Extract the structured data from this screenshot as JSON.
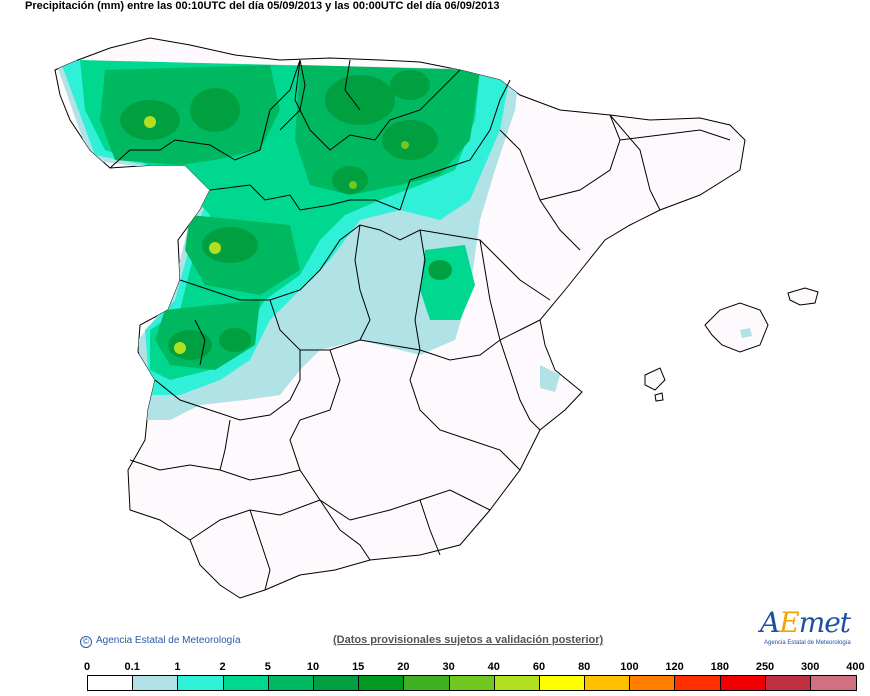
{
  "title": "Precipitación (mm) entre las 00:10UTC del día 05/09/2013 y las 00:00UTC del día 06/09/2013",
  "copyright": "Agencia Estatal de Meteorología",
  "disclaimer": "(Datos provisionales sujetos a validación posterior)",
  "logo": {
    "word_a": "A",
    "word_e": "E",
    "word_rest": "met",
    "sub": "Agencia Estatal de Meteorología"
  },
  "legend": {
    "labels": [
      "0",
      "0.1",
      "1",
      "2",
      "5",
      "10",
      "15",
      "20",
      "30",
      "40",
      "60",
      "80",
      "100",
      "120",
      "180",
      "250",
      "300",
      "400"
    ],
    "colors": [
      "#ffffff",
      "#b0e2e6",
      "#30f0d8",
      "#00d890",
      "#00b860",
      "#00a040",
      "#009a20",
      "#40b020",
      "#70c820",
      "#b0e020",
      "#ffff00",
      "#ffc000",
      "#ff8000",
      "#ff3000",
      "#f00000",
      "#c03040",
      "#d07080",
      "#f0c0c8"
    ]
  },
  "map_colors": {
    "land": "#fdf9fd",
    "sea": "#ffffff",
    "border": "#000000",
    "light": "#b0e2e6",
    "cyan": "#30f0d8",
    "green1": "#00d890",
    "green2": "#00b860",
    "green3": "#00a040",
    "yellowgreen": "#b0e020"
  }
}
